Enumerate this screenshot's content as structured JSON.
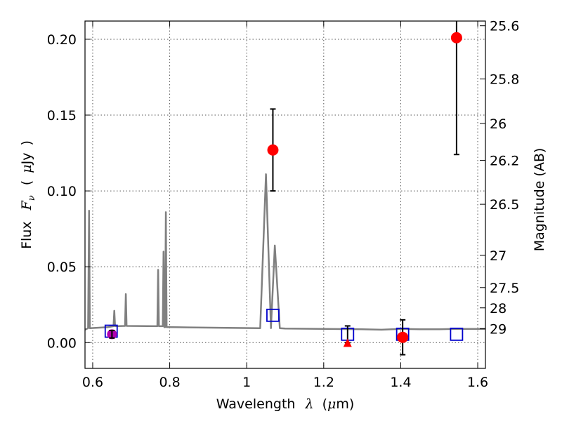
{
  "chart_data": {
    "type": "scatter",
    "xlabel": "Wavelength",
    "xlabel_symbol": "λ",
    "xlabel_unit_open": "(",
    "xlabel_unit_mu": "μ",
    "xlabel_unit": "m)",
    "ylabel": "Flux",
    "ylabel_symbol": "F",
    "ylabel_symbol_sub": "ν",
    "ylabel_unit_open": "(",
    "ylabel_unit_mu": "μ",
    "ylabel_unit": "Jy",
    "ylabel_unit_close": ")",
    "y2label": "Magnitude (AB)",
    "xlim": [
      0.58,
      1.62
    ],
    "ylim": [
      -0.017,
      0.212
    ],
    "grid": true,
    "x_ticks": [
      0.6,
      0.8,
      1.0,
      1.2,
      1.4,
      1.6
    ],
    "x_tick_labels": [
      "0.6",
      "0.8",
      "1",
      "1.2",
      "1.4",
      "1.6"
    ],
    "y_ticks": [
      0.0,
      0.05,
      0.1,
      0.15,
      0.2
    ],
    "y_tick_labels": [
      "0.00",
      "0.05",
      "0.10",
      "0.15",
      "0.20"
    ],
    "mag_ticks": [
      {
        "label": "25.6",
        "flux": 0.2089
      },
      {
        "label": "25.8",
        "flux": 0.1738
      },
      {
        "label": "26",
        "flux": 0.1445
      },
      {
        "label": "26.2",
        "flux": 0.1202
      },
      {
        "label": "26.5",
        "flux": 0.0912
      },
      {
        "label": "27",
        "flux": 0.0575
      },
      {
        "label": "27.5",
        "flux": 0.0363
      },
      {
        "label": "28",
        "flux": 0.0229
      },
      {
        "label": "29",
        "flux": 0.0091
      }
    ],
    "colors": {
      "model": "#808080",
      "observed": "#ff0000",
      "model_photometry": "#0000cc",
      "errorbar": "#000000",
      "upper_limit": "#ff0000",
      "special_point": "#b000b0"
    },
    "model_spectrum": [
      [
        0.58,
        0.0085
      ],
      [
        0.588,
        0.0095
      ],
      [
        0.5905,
        0.087
      ],
      [
        0.5925,
        0.0095
      ],
      [
        0.64,
        0.0102
      ],
      [
        0.654,
        0.0108
      ],
      [
        0.656,
        0.021
      ],
      [
        0.658,
        0.0108
      ],
      [
        0.684,
        0.011
      ],
      [
        0.686,
        0.032
      ],
      [
        0.688,
        0.011
      ],
      [
        0.768,
        0.0108
      ],
      [
        0.77,
        0.048
      ],
      [
        0.772,
        0.0108
      ],
      [
        0.782,
        0.0108
      ],
      [
        0.784,
        0.06
      ],
      [
        0.786,
        0.0102
      ],
      [
        0.788,
        0.0102
      ],
      [
        0.79,
        0.086
      ],
      [
        0.792,
        0.0102
      ],
      [
        0.8,
        0.0102
      ],
      [
        0.85,
        0.01
      ],
      [
        0.95,
        0.0097
      ],
      [
        1.035,
        0.0095
      ],
      [
        1.05,
        0.111
      ],
      [
        1.063,
        0.0095
      ],
      [
        1.073,
        0.064
      ],
      [
        1.086,
        0.0095
      ],
      [
        1.1,
        0.0093
      ],
      [
        1.2,
        0.009
      ],
      [
        1.3,
        0.0088
      ],
      [
        1.35,
        0.0085
      ],
      [
        1.4,
        0.009
      ],
      [
        1.45,
        0.0088
      ],
      [
        1.5,
        0.0088
      ],
      [
        1.55,
        0.009
      ],
      [
        1.62,
        0.009
      ]
    ],
    "observed": [
      {
        "x": 1.068,
        "y": 0.127,
        "yerr": 0.027
      },
      {
        "x": 1.545,
        "y": 0.201,
        "yerr": 0.077
      },
      {
        "x": 1.405,
        "y": 0.0035,
        "yerr": 0.0115
      }
    ],
    "special_point": {
      "x": 0.65,
      "y": 0.0055,
      "yerr": 0.0025
    },
    "upper_limits": [
      {
        "x": 1.262,
        "y": -0.0005,
        "bar": [
          0.0,
          0.011
        ]
      }
    ],
    "model_photometry": [
      {
        "x": 0.648,
        "y": 0.0075
      },
      {
        "x": 1.068,
        "y": 0.018
      },
      {
        "x": 1.262,
        "y": 0.0055
      },
      {
        "x": 1.405,
        "y": 0.0055
      },
      {
        "x": 1.545,
        "y": 0.0055
      }
    ]
  }
}
